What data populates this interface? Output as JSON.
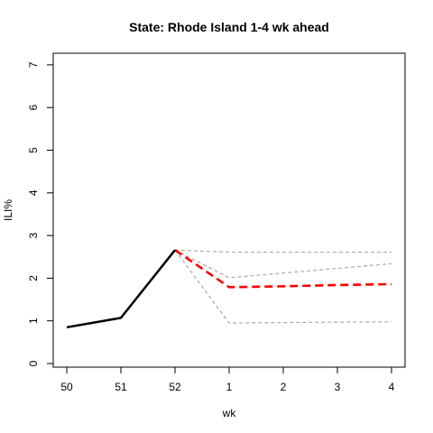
{
  "chart_data": {
    "type": "line",
    "title": "State: Rhode Island 1-4 wk ahead",
    "xlabel": "wk",
    "ylabel": "ILI%",
    "categories": [
      "50",
      "51",
      "52",
      "1",
      "2",
      "3",
      "4"
    ],
    "ylim": [
      0,
      7
    ],
    "yticks": [
      0,
      1,
      2,
      3,
      4,
      5,
      6,
      7
    ],
    "grid": false,
    "series": [
      {
        "role": "observed",
        "color": "#000000",
        "style": "solid",
        "x": [
          "50",
          "51",
          "52"
        ],
        "values": [
          0.85,
          1.07,
          2.66
        ]
      },
      {
        "role": "forecast",
        "color": "#ff0000",
        "style": "dashed",
        "x": [
          "52",
          "1",
          "2",
          "3",
          "4"
        ],
        "values": [
          2.66,
          1.79,
          1.81,
          1.84,
          1.86
        ]
      },
      {
        "role": "upper bound",
        "color": "#a9a9a9",
        "style": "dashed",
        "x": [
          "52",
          "1",
          "2",
          "3",
          "4"
        ],
        "values": [
          2.66,
          2.61,
          2.61,
          2.61,
          2.61
        ]
      },
      {
        "role": "upper-mid bound",
        "color": "#a9a9a9",
        "style": "dashed",
        "x": [
          "52",
          "1",
          "2",
          "3",
          "4"
        ],
        "values": [
          2.66,
          2.01,
          2.12,
          2.23,
          2.34
        ]
      },
      {
        "role": "lower bound",
        "color": "#a9a9a9",
        "style": "dashed",
        "x": [
          "52",
          "1",
          "2",
          "3",
          "4"
        ],
        "values": [
          2.66,
          0.95,
          0.96,
          0.97,
          0.98
        ]
      }
    ]
  }
}
